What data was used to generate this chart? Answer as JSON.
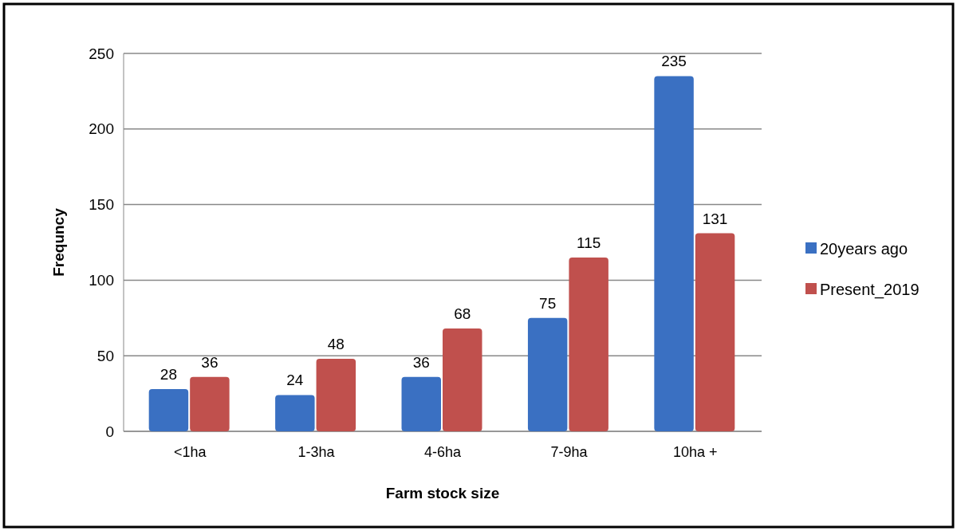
{
  "chart_data": {
    "type": "bar",
    "xlabel": "Farm stock size",
    "ylabel": "Frequncy",
    "categories": [
      "<1ha",
      "1-3ha",
      "4-6ha",
      "7-9ha",
      "10ha +"
    ],
    "series": [
      {
        "name": "20years ago",
        "color": "#3a70c2",
        "values": [
          28,
          24,
          36,
          75,
          235
        ]
      },
      {
        "name": "Present_2019",
        "color": "#c0504d",
        "values": [
          36,
          48,
          68,
          115,
          131
        ]
      }
    ],
    "ylim": [
      0,
      250
    ],
    "yticks": [
      0,
      50,
      100,
      150,
      200,
      250
    ],
    "grid": "y",
    "legend": "right",
    "data_labels": true
  }
}
